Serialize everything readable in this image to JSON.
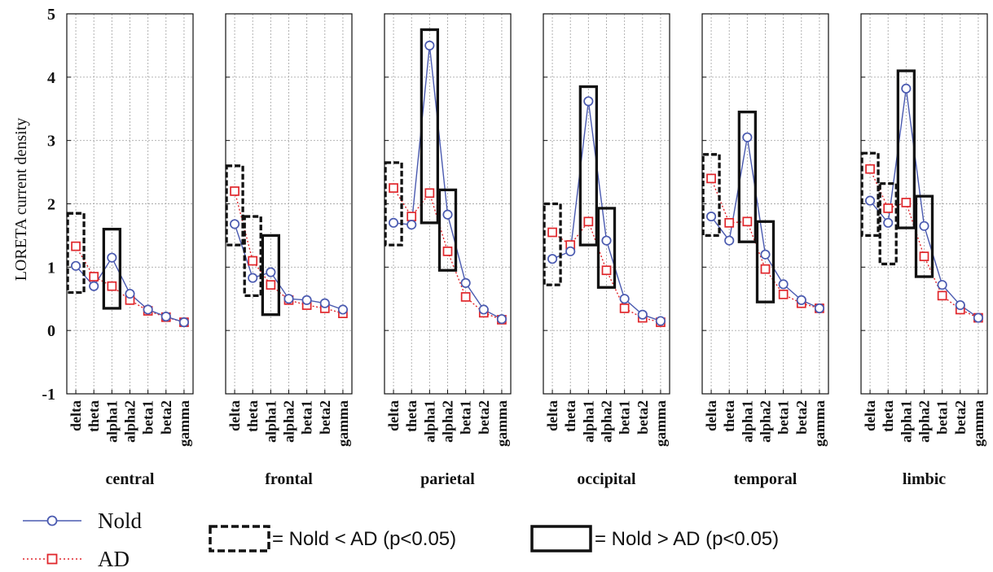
{
  "chart_data": {
    "type": "line",
    "ylabel": "LORETA current density",
    "ylim": [
      -1,
      5
    ],
    "yticks": [
      -1,
      0,
      1,
      2,
      3,
      4,
      5
    ],
    "grid": true,
    "categories": [
      "delta",
      "theta",
      "alpha1",
      "alpha2",
      "beta1",
      "beta2",
      "gamma"
    ],
    "series_styles": [
      {
        "name": "Nold",
        "color": "#4a5ab0",
        "marker": "circle",
        "line": "solid"
      },
      {
        "name": "AD",
        "color": "#e0262b",
        "marker": "square",
        "line": "dotted"
      }
    ],
    "panels": [
      {
        "title": "central",
        "series": [
          {
            "name": "Nold",
            "values": [
              1.02,
              0.7,
              1.15,
              0.58,
              0.33,
              0.22,
              0.13
            ]
          },
          {
            "name": "AD",
            "values": [
              1.33,
              0.85,
              0.7,
              0.48,
              0.31,
              0.21,
              0.13
            ]
          }
        ],
        "boxes": [
          {
            "category": "delta",
            "style": "dashed",
            "lower": 0.6,
            "upper": 1.85
          },
          {
            "category": "alpha1",
            "style": "solid",
            "lower": 0.35,
            "upper": 1.6
          }
        ]
      },
      {
        "title": "frontal",
        "series": [
          {
            "name": "Nold",
            "values": [
              1.68,
              0.83,
              0.92,
              0.5,
              0.48,
              0.43,
              0.33
            ]
          },
          {
            "name": "AD",
            "values": [
              2.2,
              1.1,
              0.72,
              0.48,
              0.4,
              0.35,
              0.27
            ]
          }
        ],
        "boxes": [
          {
            "category": "delta",
            "style": "dashed",
            "lower": 1.35,
            "upper": 2.6
          },
          {
            "category": "theta",
            "style": "dashed",
            "lower": 0.55,
            "upper": 1.8
          },
          {
            "category": "alpha1",
            "style": "solid",
            "lower": 0.25,
            "upper": 1.5
          }
        ]
      },
      {
        "title": "parietal",
        "series": [
          {
            "name": "Nold",
            "values": [
              1.7,
              1.67,
              4.5,
              1.83,
              0.75,
              0.33,
              0.18
            ]
          },
          {
            "name": "AD",
            "values": [
              2.25,
              1.8,
              2.17,
              1.25,
              0.53,
              0.28,
              0.17
            ]
          }
        ],
        "boxes": [
          {
            "category": "delta",
            "style": "dashed",
            "lower": 1.35,
            "upper": 2.65
          },
          {
            "category": "alpha1",
            "style": "solid",
            "lower": 1.7,
            "upper": 4.75
          },
          {
            "category": "alpha2",
            "style": "solid",
            "lower": 0.95,
            "upper": 2.22
          }
        ]
      },
      {
        "title": "occipital",
        "series": [
          {
            "name": "Nold",
            "values": [
              1.13,
              1.25,
              3.62,
              1.42,
              0.5,
              0.25,
              0.15
            ]
          },
          {
            "name": "AD",
            "values": [
              1.55,
              1.35,
              1.72,
              0.95,
              0.35,
              0.2,
              0.13
            ]
          }
        ],
        "boxes": [
          {
            "category": "delta",
            "style": "dashed",
            "lower": 0.72,
            "upper": 2.0
          },
          {
            "category": "alpha1",
            "style": "solid",
            "lower": 1.35,
            "upper": 3.85
          },
          {
            "category": "alpha2",
            "style": "solid",
            "lower": 0.68,
            "upper": 1.93
          }
        ]
      },
      {
        "title": "temporal",
        "series": [
          {
            "name": "Nold",
            "values": [
              1.8,
              1.42,
              3.05,
              1.2,
              0.73,
              0.48,
              0.35
            ]
          },
          {
            "name": "AD",
            "values": [
              2.4,
              1.7,
              1.72,
              0.97,
              0.57,
              0.43,
              0.35
            ]
          }
        ],
        "boxes": [
          {
            "category": "delta",
            "style": "dashed",
            "lower": 1.5,
            "upper": 2.78
          },
          {
            "category": "alpha1",
            "style": "solid",
            "lower": 1.4,
            "upper": 3.45
          },
          {
            "category": "alpha2",
            "style": "solid",
            "lower": 0.45,
            "upper": 1.72
          }
        ]
      },
      {
        "title": "limbic",
        "series": [
          {
            "name": "Nold",
            "values": [
              2.05,
              1.7,
              3.82,
              1.65,
              0.72,
              0.4,
              0.2
            ]
          },
          {
            "name": "AD",
            "values": [
              2.55,
              1.93,
              2.02,
              1.17,
              0.55,
              0.33,
              0.2
            ]
          }
        ],
        "boxes": [
          {
            "category": "delta",
            "style": "dashed",
            "lower": 1.5,
            "upper": 2.8
          },
          {
            "category": "theta",
            "style": "dashed",
            "lower": 1.05,
            "upper": 2.32
          },
          {
            "category": "alpha1",
            "style": "solid",
            "lower": 1.62,
            "upper": 4.1
          },
          {
            "category": "alpha2",
            "style": "solid",
            "lower": 0.85,
            "upper": 2.12
          }
        ]
      }
    ]
  },
  "legend": {
    "series": [
      {
        "name": "Nold"
      },
      {
        "name": "AD"
      }
    ],
    "significance": [
      {
        "style": "dashed",
        "label": "= Nold < AD (p<0.05)"
      },
      {
        "style": "solid",
        "label": "= Nold > AD (p<0.05)"
      }
    ]
  }
}
